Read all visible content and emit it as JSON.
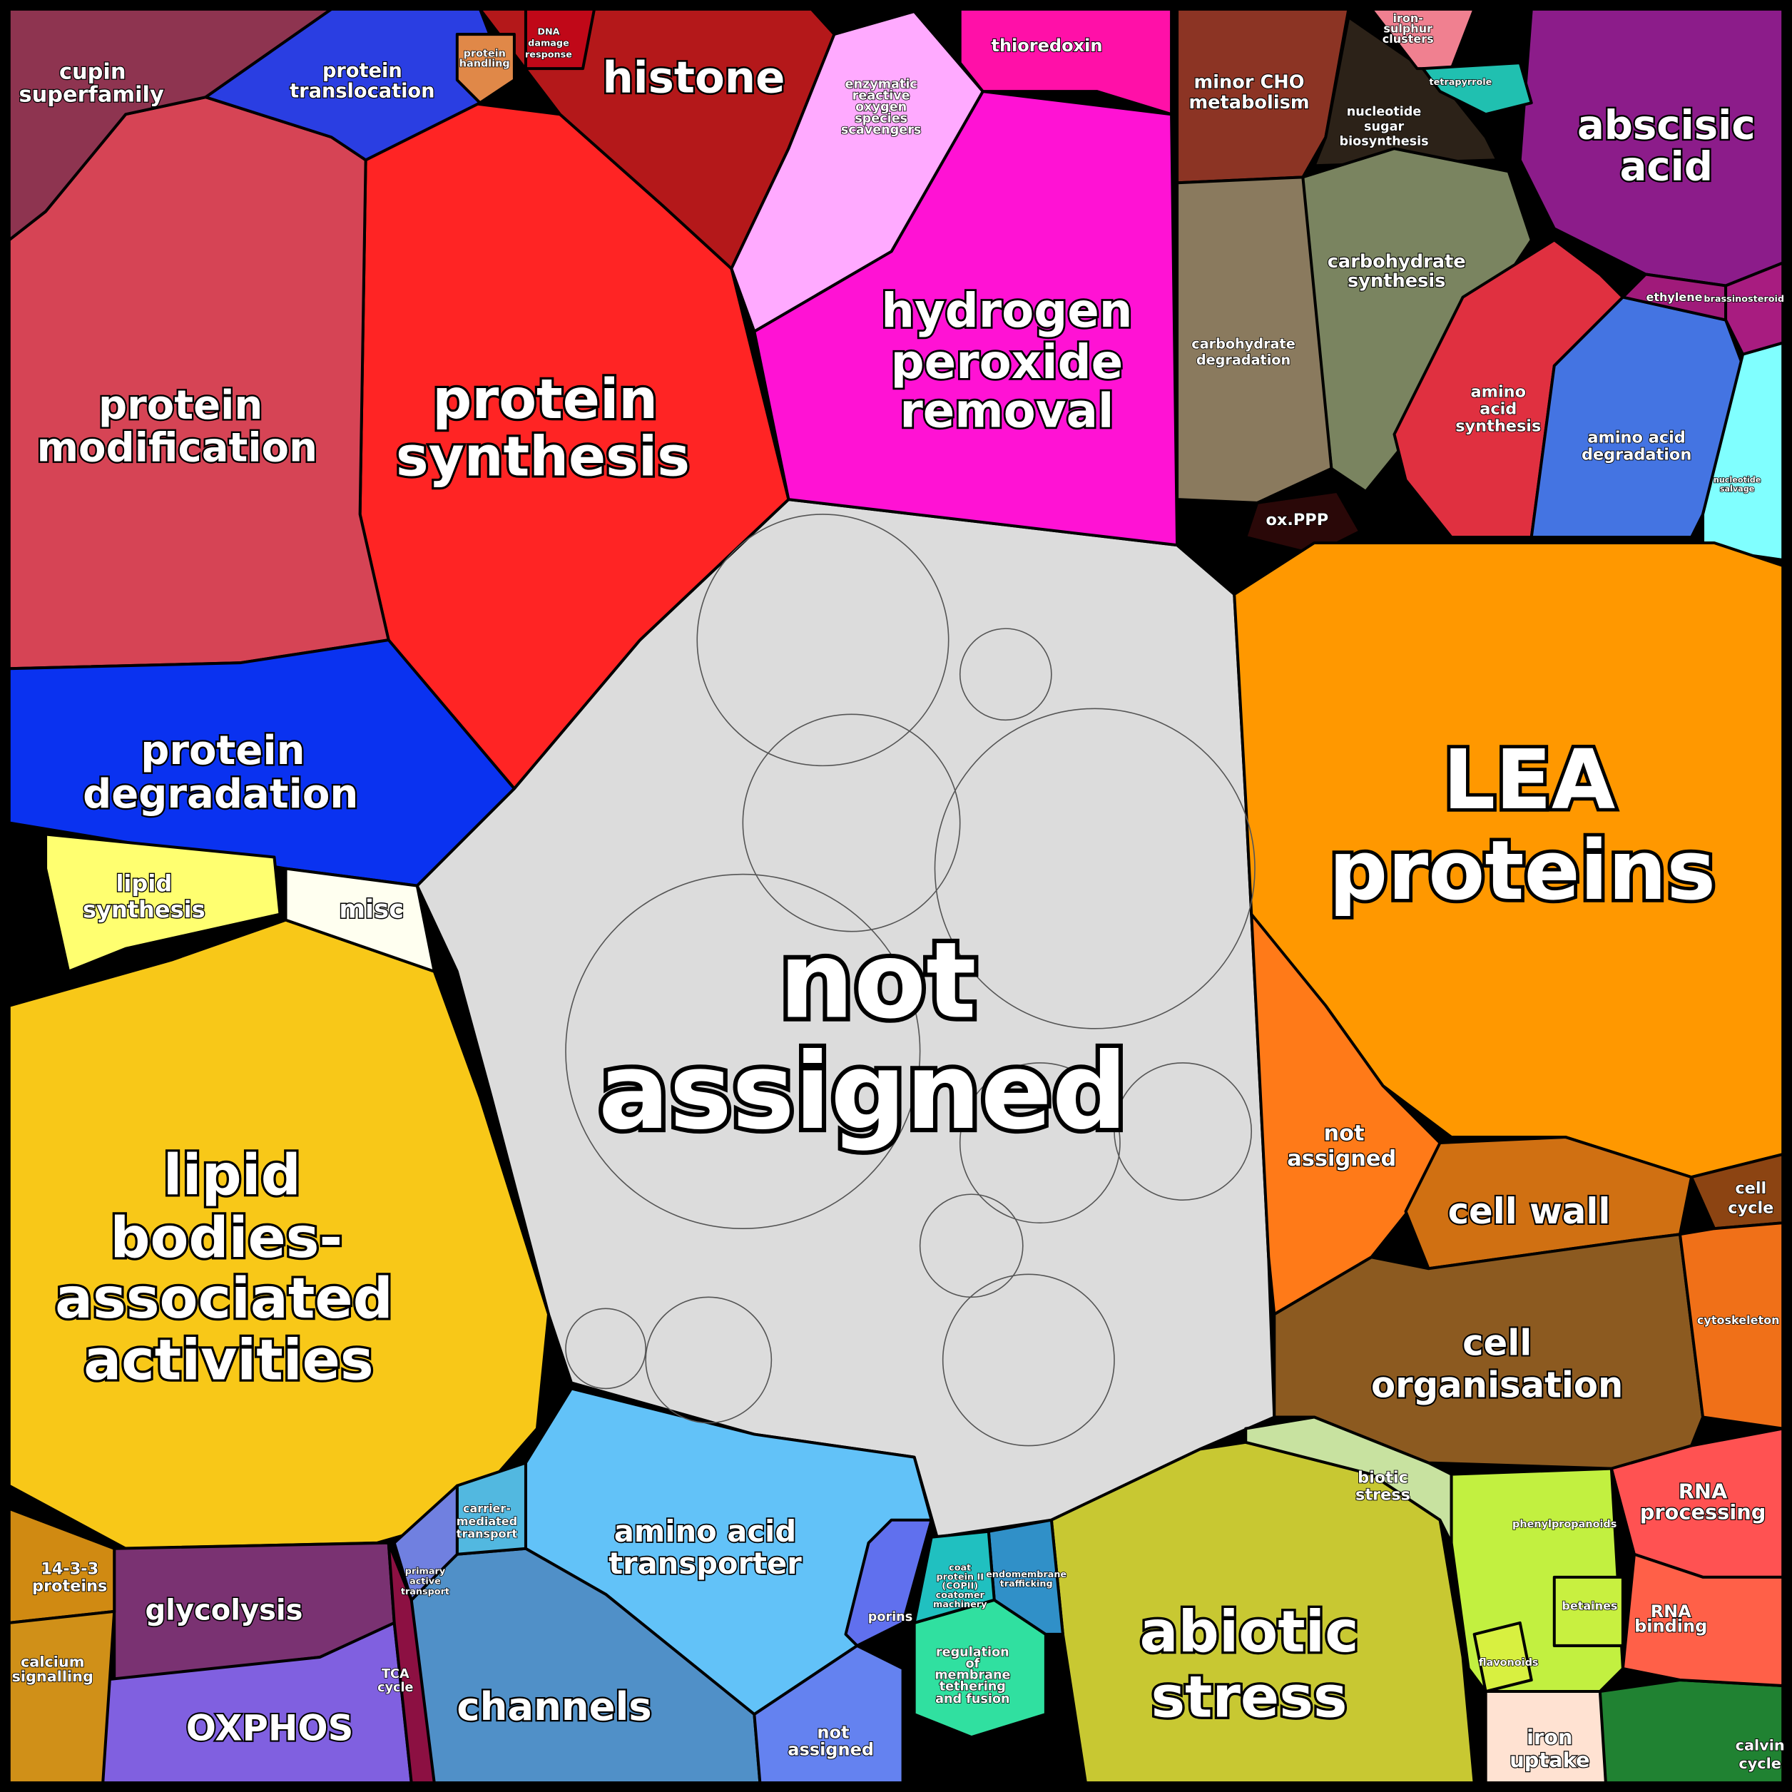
{
  "regions": [
    {
      "label": [
        "not",
        "assigned"
      ],
      "color": "#dcdcdc"
    },
    {
      "label": [
        "protein",
        "synthesis"
      ],
      "color": "#ff2424"
    },
    {
      "label": [
        "histone"
      ],
      "color": "#b4181a"
    },
    {
      "label": [
        "protein",
        "modification"
      ],
      "color": "#d64455"
    },
    {
      "label": [
        "cupin",
        "superfamily"
      ],
      "color": "#8e3450"
    },
    {
      "label": [
        "protein",
        "translocation"
      ],
      "color": "#2a3ee2"
    },
    {
      "label": [
        "protein",
        "degradation"
      ],
      "color": "#0a32f0"
    },
    {
      "label": [
        "hydrogen",
        "peroxide",
        "removal"
      ],
      "color": "#ff12d4"
    },
    {
      "label": [
        "enzymatic",
        "reactive",
        "oxygen",
        "species",
        "scavengers"
      ],
      "color": "#ffaaff"
    },
    {
      "label": [
        "thioredoxin"
      ],
      "color": "#ff10a8"
    },
    {
      "label": [
        "minor CHO",
        "metabolism"
      ],
      "color": "#8c3424"
    },
    {
      "label": [
        "nucleotide",
        "sugar",
        "biosynthesis"
      ],
      "color": "#2c2218"
    },
    {
      "label": [
        "abscisic",
        "acid"
      ],
      "color": "#8c1c8a"
    },
    {
      "label": [
        "carbohydrate",
        "synthesis"
      ],
      "color": "#7a8460"
    },
    {
      "label": [
        "carbohydrate",
        "degradation"
      ],
      "color": "#8a7a5e"
    },
    {
      "label": [
        "ox.PPP"
      ],
      "color": "#2a0808"
    },
    {
      "label": [
        "amino",
        "acid",
        "synthesis"
      ],
      "color": "#e03040"
    },
    {
      "label": [
        "amino acid",
        "degradation"
      ],
      "color": "#4474e2"
    },
    {
      "label": [
        "ethylene"
      ],
      "color": "#a01a7a"
    },
    {
      "label": [
        "nucleotide",
        "salvage"
      ],
      "color": "#80ffff"
    },
    {
      "label": [
        "LEA",
        "proteins"
      ],
      "color": "#ff9800"
    },
    {
      "label": [
        "not",
        "assigned"
      ],
      "color": "#ff7a18"
    },
    {
      "label": [
        "cell wall"
      ],
      "color": "#d07012"
    },
    {
      "label": [
        "cell",
        "cycle"
      ],
      "color": "#8c4412"
    },
    {
      "label": [
        "cell",
        "organisation"
      ],
      "color": "#8c5a20"
    },
    {
      "label": [
        "cytoskeleton"
      ],
      "color": "#f07018"
    },
    {
      "label": [
        "abiotic",
        "stress"
      ],
      "color": "#c8c832"
    },
    {
      "label": [
        "biotic",
        "stress"
      ],
      "color": "#c8e2a0"
    },
    {
      "label": [
        "phenylpropanoids"
      ],
      "color": "#c2f040"
    },
    {
      "label": [
        "RNA",
        "processing"
      ],
      "color": "#ff5252"
    },
    {
      "label": [
        "calvin",
        "cycle"
      ],
      "color": "#208232"
    },
    {
      "label": [
        "iron",
        "uptake"
      ],
      "color": "#ffe2d2"
    },
    {
      "label": [
        "amino acid",
        "transporter"
      ],
      "color": "#62c2f8"
    },
    {
      "label": [
        "channels"
      ],
      "color": "#5090c8"
    },
    {
      "label": [
        "not",
        "assigned"
      ],
      "color": "#6482f0"
    },
    {
      "label": [
        "porins"
      ],
      "color": "#6070ee"
    },
    {
      "label": [
        "regulation",
        "of",
        "membrane",
        "tethering",
        "and fusion"
      ],
      "color": "#30e0a0"
    },
    {
      "label": [
        "lipid",
        "bodies-",
        "associated",
        "activities"
      ],
      "color": "#f8c818"
    },
    {
      "label": [
        "lipid",
        "synthesis"
      ],
      "color": "#ffff70"
    },
    {
      "label": [
        "misc"
      ],
      "color": "#fffff0"
    },
    {
      "label": [
        "glycolysis"
      ],
      "color": "#7a3272"
    },
    {
      "label": [
        "OXPHOS"
      ],
      "color": "#8060e0"
    },
    {
      "label": [
        "TCA",
        "cycle"
      ],
      "color": "#8c1042"
    },
    {
      "label": [
        "14-3-3",
        "proteins"
      ],
      "color": "#d08a12"
    },
    {
      "label": [
        "calcium",
        "signalling"
      ],
      "color": "#d09018"
    },
    {
      "label": [
        "carrier-",
        "mediated",
        "transport"
      ],
      "color": "#52b8e0"
    },
    {
      "label": [
        "primary",
        "active",
        "transport"
      ],
      "color": "#7080e0"
    },
    {
      "label": [
        "RNA",
        "binding"
      ],
      "color": "#ff6048"
    },
    {
      "label": [
        "endomembrane",
        "trafficking"
      ],
      "color": "#3090c8"
    },
    {
      "label": [
        "coat",
        "protein II",
        "(COPII)",
        "coatomer",
        "machinery"
      ],
      "color": "#20c0c0"
    },
    {
      "label": [
        "iron-",
        "sulphur",
        "clusters"
      ],
      "color": "#f08090"
    },
    {
      "label": [
        "tetrapyrrole"
      ],
      "color": "#20c0b0"
    },
    {
      "label": [
        "DNA",
        "damage",
        "response"
      ],
      "color": "#c00818"
    },
    {
      "label": [
        "protein",
        "handling"
      ],
      "color": "#e08848"
    },
    {
      "label": [
        "flavonoids"
      ],
      "color": "#d8f040"
    },
    {
      "label": [
        "betaines"
      ],
      "color": "#c8f040"
    },
    {
      "label": [
        "brassinosteroid"
      ],
      "color": "#a81c80"
    }
  ]
}
